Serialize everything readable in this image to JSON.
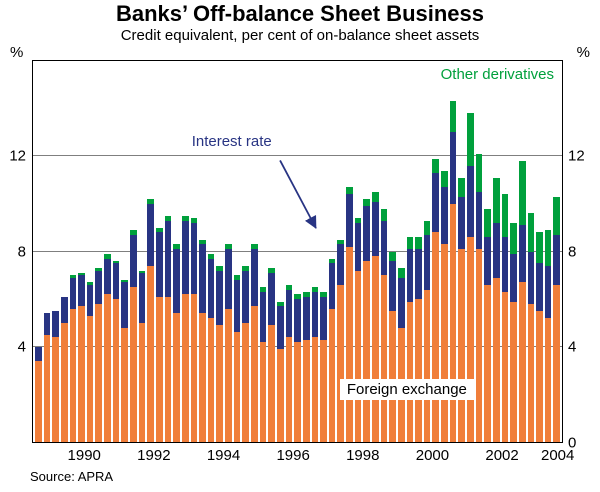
{
  "title": "Banks’ Off-balance Sheet Business",
  "subtitle": "Credit equivalent, per cent of on-balance sheet assets",
  "source": "Source: APRA",
  "axis": {
    "unit_left": "%",
    "unit_right": "%",
    "yticks_left": [
      4,
      8,
      12
    ],
    "yticks_right": [
      0,
      4,
      8,
      12
    ],
    "xticks": [
      "1990",
      "1992",
      "1994",
      "1996",
      "1998",
      "2000",
      "2002",
      "2004"
    ]
  },
  "annotations": {
    "other_derivatives": "Other derivatives",
    "interest_rate": "Interest rate",
    "foreign_exchange": "Foreign exchange"
  },
  "colors": {
    "foreign_exchange": "#F07E3A",
    "interest_rate": "#283483",
    "other_derivatives": "#00A03C",
    "gridline": "#7F7F7F",
    "frame": "#000000"
  },
  "chart_data": {
    "type": "bar",
    "stacked": true,
    "frequency": "quarterly",
    "title": "Banks’ Off-balance Sheet Business",
    "subtitle": "Credit equivalent, per cent of on-balance sheet assets",
    "ylabel": "%",
    "ylim": [
      0,
      16
    ],
    "gridlines": [
      4,
      8,
      12
    ],
    "legend_position": "annotations-in-plot",
    "categories": [
      "1989Q1",
      "1989Q2",
      "1989Q3",
      "1989Q4",
      "1990Q1",
      "1990Q2",
      "1990Q3",
      "1990Q4",
      "1991Q1",
      "1991Q2",
      "1991Q3",
      "1991Q4",
      "1992Q1",
      "1992Q2",
      "1992Q3",
      "1992Q4",
      "1993Q1",
      "1993Q2",
      "1993Q3",
      "1993Q4",
      "1994Q1",
      "1994Q2",
      "1994Q3",
      "1994Q4",
      "1995Q1",
      "1995Q2",
      "1995Q3",
      "1995Q4",
      "1996Q1",
      "1996Q2",
      "1996Q3",
      "1996Q4",
      "1997Q1",
      "1997Q2",
      "1997Q3",
      "1997Q4",
      "1998Q1",
      "1998Q2",
      "1998Q3",
      "1998Q4",
      "1999Q1",
      "1999Q2",
      "1999Q3",
      "1999Q4",
      "2000Q1",
      "2000Q2",
      "2000Q3",
      "2000Q4",
      "2001Q1",
      "2001Q2",
      "2001Q3",
      "2001Q4",
      "2002Q1",
      "2002Q2",
      "2002Q3",
      "2002Q4",
      "2003Q1",
      "2003Q2",
      "2003Q3",
      "2003Q4",
      "2004Q1"
    ],
    "series": [
      {
        "name": "Foreign exchange",
        "key": "foreign-exchange",
        "color": "#F07E3A",
        "values": [
          3.4,
          4.5,
          4.4,
          5.0,
          5.6,
          5.7,
          5.3,
          5.8,
          6.2,
          6.0,
          4.8,
          6.5,
          5.0,
          7.4,
          6.1,
          6.1,
          5.4,
          6.2,
          6.2,
          5.4,
          5.2,
          4.9,
          5.6,
          4.6,
          5.0,
          5.7,
          4.2,
          4.9,
          3.9,
          4.4,
          4.2,
          4.3,
          4.4,
          4.3,
          5.6,
          6.6,
          8.2,
          7.2,
          7.6,
          7.8,
          7.0,
          5.5,
          4.8,
          5.9,
          6.0,
          6.4,
          8.8,
          8.3,
          10.0,
          8.1,
          8.6,
          8.1,
          6.6,
          6.9,
          6.3,
          5.9,
          6.7,
          5.8,
          5.5,
          5.2,
          6.6
        ]
      },
      {
        "name": "Interest rate",
        "key": "interest-rate",
        "color": "#283483",
        "values": [
          0.6,
          0.9,
          1.1,
          1.1,
          1.3,
          1.3,
          1.3,
          1.4,
          1.5,
          1.5,
          1.9,
          2.2,
          2.1,
          2.6,
          2.7,
          3.2,
          2.7,
          3.1,
          3.0,
          2.9,
          2.5,
          2.3,
          2.5,
          2.2,
          2.2,
          2.4,
          2.1,
          2.2,
          1.8,
          2.0,
          1.8,
          1.8,
          1.9,
          1.8,
          1.9,
          1.7,
          2.2,
          2.0,
          2.3,
          2.3,
          2.3,
          2.1,
          2.1,
          2.2,
          2.1,
          2.3,
          2.5,
          2.4,
          3.0,
          2.2,
          3.0,
          2.4,
          2.0,
          2.3,
          2.3,
          2.0,
          2.4,
          2.2,
          2.0,
          2.2,
          2.1
        ]
      },
      {
        "name": "Other derivatives",
        "key": "other-derivatives",
        "color": "#00A03C",
        "values": [
          0,
          0,
          0,
          0,
          0.1,
          0.1,
          0.1,
          0.1,
          0.2,
          0.1,
          0.1,
          0.2,
          0.1,
          0.2,
          0.2,
          0.2,
          0.2,
          0.2,
          0.2,
          0.2,
          0.2,
          0.2,
          0.2,
          0.2,
          0.2,
          0.2,
          0.2,
          0.2,
          0.2,
          0.2,
          0.2,
          0.2,
          0.2,
          0.2,
          0.2,
          0.2,
          0.3,
          0.2,
          0.3,
          0.4,
          0.5,
          0.4,
          0.4,
          0.5,
          0.5,
          0.6,
          0.6,
          0.7,
          1.3,
          0.8,
          2.2,
          1.6,
          1.2,
          1.9,
          1.8,
          1.3,
          2.7,
          1.6,
          1.3,
          1.5,
          1.6
        ]
      }
    ]
  }
}
